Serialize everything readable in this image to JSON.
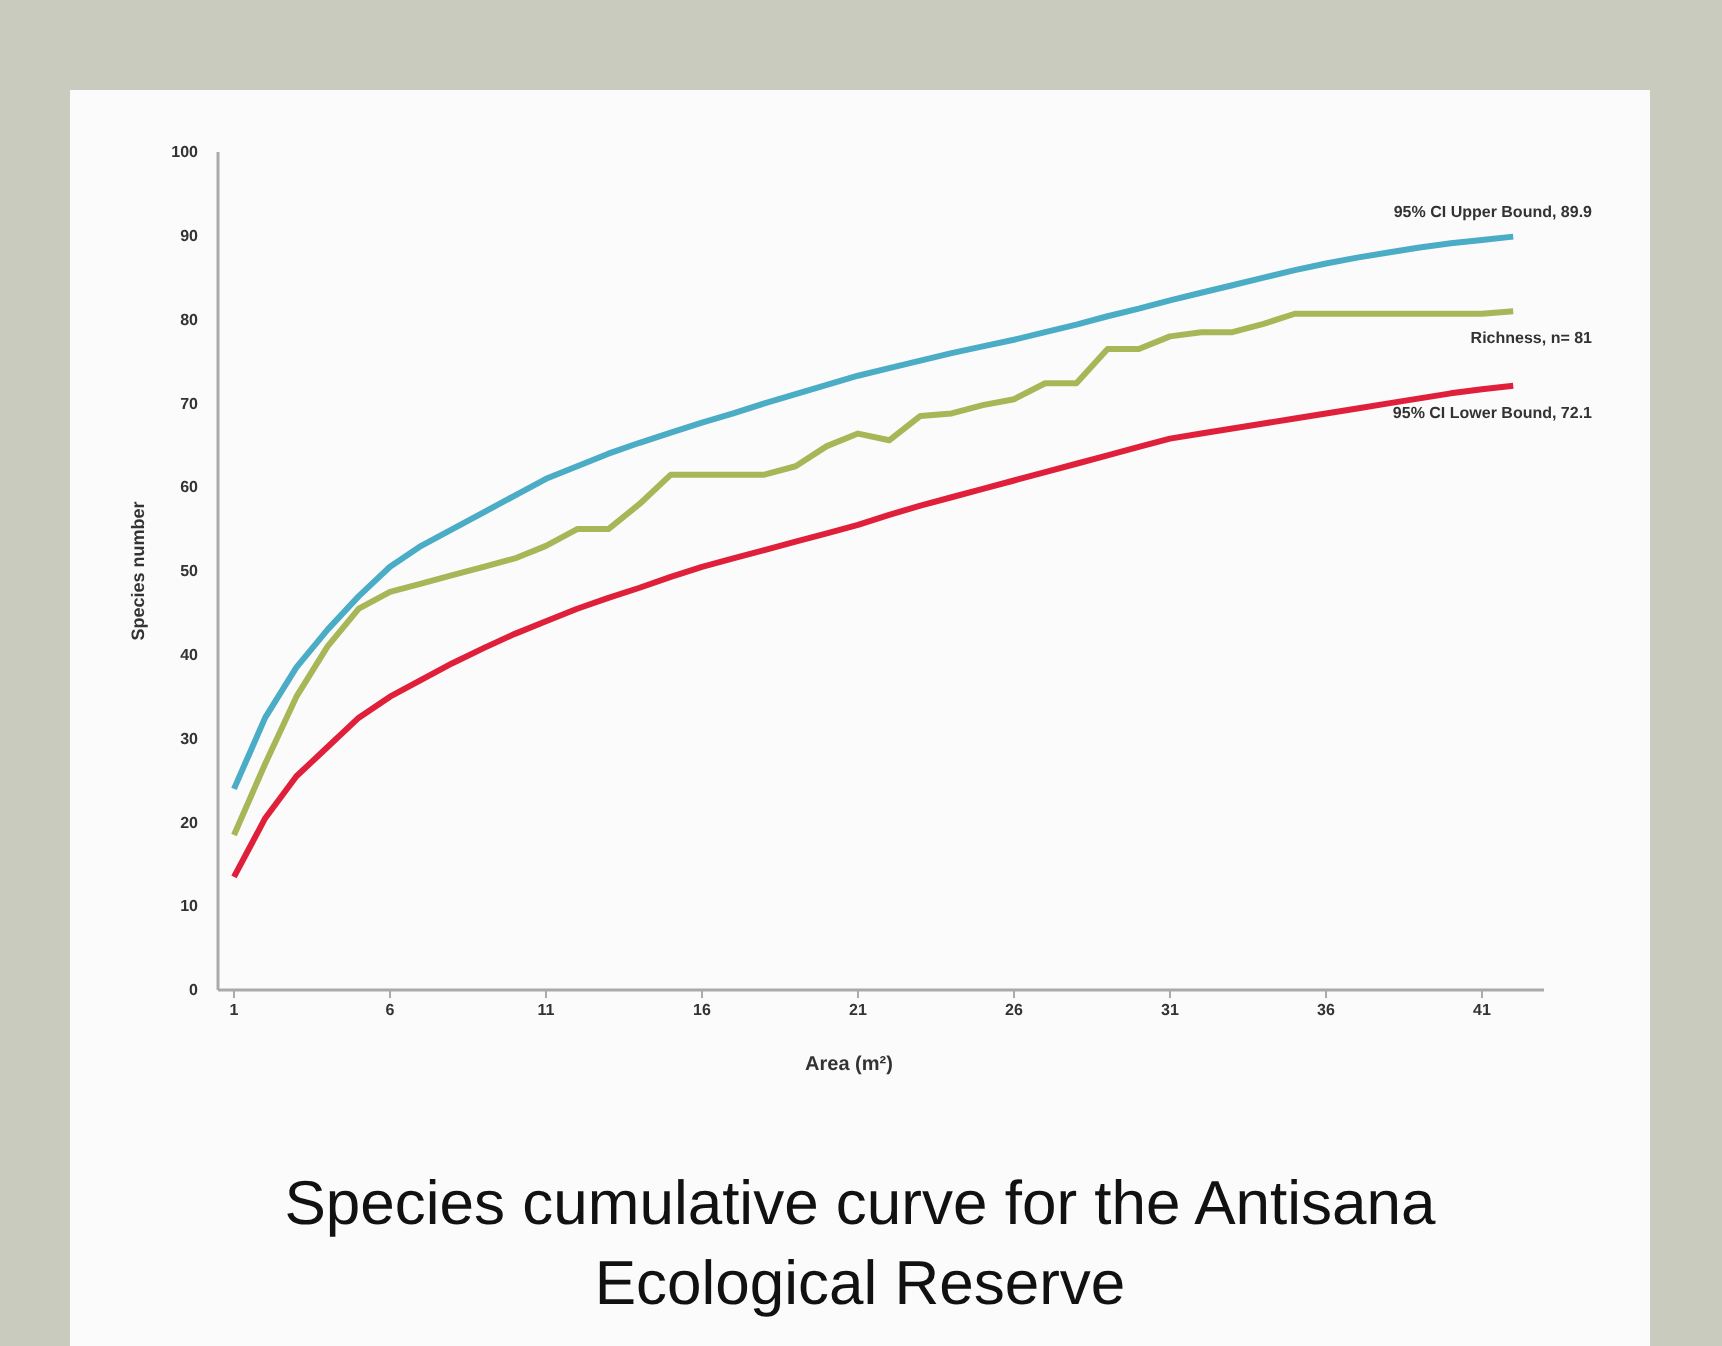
{
  "chart_data": {
    "type": "line",
    "title": "Species cumulative curve for the Antisana Ecological Reserve",
    "xlabel": "Area (m²)",
    "ylabel": "Species number",
    "categories": [
      "1",
      null,
      null,
      null,
      null,
      "6",
      null,
      null,
      null,
      null,
      "11",
      null,
      null,
      null,
      null,
      "16",
      null,
      null,
      null,
      null,
      "21",
      null,
      null,
      null,
      null,
      "26",
      null,
      null,
      null,
      null,
      "31",
      null,
      null,
      null,
      null,
      "36",
      null,
      null,
      null,
      null,
      "41",
      null
    ],
    "series": [
      {
        "color": "#4bacc6",
        "values": [
          24,
          32.5,
          38.5,
          43,
          47,
          50.5,
          53,
          55,
          57,
          59,
          61,
          62.5,
          64,
          65.3,
          66.5,
          67.7,
          68.8,
          70,
          71.1,
          72.2,
          73.3,
          74.2,
          75.1,
          76,
          76.8,
          77.6,
          78.5,
          79.4,
          80.4,
          81.3,
          82.3,
          83.2,
          84.1,
          85,
          85.9,
          86.7,
          87.4,
          88,
          88.6,
          89.1,
          89.5,
          89.9
        ]
      },
      {
        "color": "#a8b657",
        "values": [
          18.5,
          27,
          35,
          41,
          45.5,
          47.5,
          48.5,
          49.5,
          50.5,
          51.5,
          53,
          55,
          55,
          58,
          61.5,
          61.5,
          61.5,
          61.5,
          62.5,
          64.9,
          66.4,
          65.6,
          68.5,
          68.8,
          69.8,
          70.5,
          72.4,
          72.4,
          76.5,
          76.5,
          78,
          78.5,
          78.5,
          79.5,
          80.7,
          80.7,
          80.7,
          80.7,
          80.7,
          80.7,
          80.7,
          81
        ]
      },
      {
        "color": "#e0203a",
        "values": [
          13.5,
          20.5,
          25.5,
          29,
          32.5,
          35,
          37,
          39,
          40.8,
          42.5,
          44,
          45.5,
          46.8,
          48,
          49.3,
          50.5,
          51.5,
          52.5,
          53.5,
          54.5,
          55.5,
          56.7,
          57.8,
          58.8,
          59.8,
          60.8,
          61.8,
          62.8,
          63.8,
          64.8,
          65.8,
          66.4,
          67,
          67.6,
          68.2,
          68.8,
          69.4,
          70,
          70.6,
          71.2,
          71.7,
          72.1
        ]
      }
    ],
    "annotations": [
      {
        "text": "95% CI Upper Bound, 89.9",
        "x": "41",
        "y": 89.9
      },
      {
        "text": "Richness, n= 81",
        "x": "41",
        "y": 81
      },
      {
        "text": "95% CI Lower Bound, 72.1",
        "x": "41",
        "y": 72.1
      }
    ],
    "ylim": [
      0,
      100
    ],
    "yticks": [
      0,
      10,
      20,
      30,
      40,
      50,
      60,
      70,
      80,
      90,
      100
    ],
    "grid": false,
    "marker": "none",
    "line_style": "solid"
  }
}
